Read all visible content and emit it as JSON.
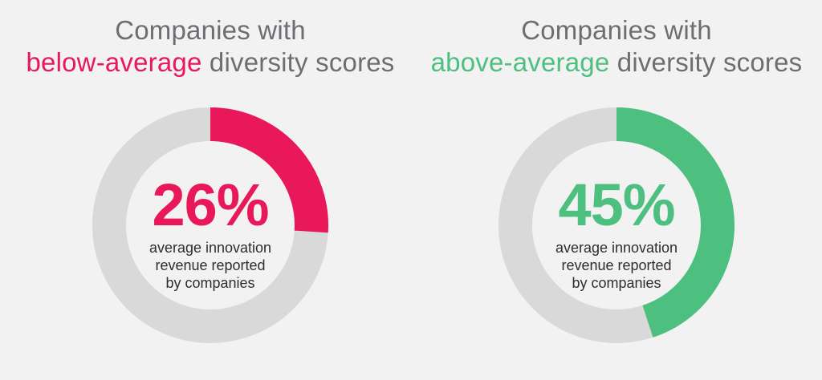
{
  "chart_data": [
    {
      "type": "pie",
      "title_line1": "Companies with",
      "title_highlight": "below-average",
      "title_rest": "diversity scores",
      "value": 26,
      "value_label": "26%",
      "description": [
        "average innovation",
        "revenue reported",
        "by companies"
      ],
      "accent_color": "#e8185a",
      "track_color": "#d9d9d9"
    },
    {
      "type": "pie",
      "title_line1": "Companies with",
      "title_highlight": "above-average",
      "title_rest": "diversity scores",
      "value": 45,
      "value_label": "45%",
      "description": [
        "average innovation",
        "revenue reported",
        "by companies"
      ],
      "accent_color": "#4dbf7f",
      "track_color": "#d9d9d9"
    }
  ]
}
